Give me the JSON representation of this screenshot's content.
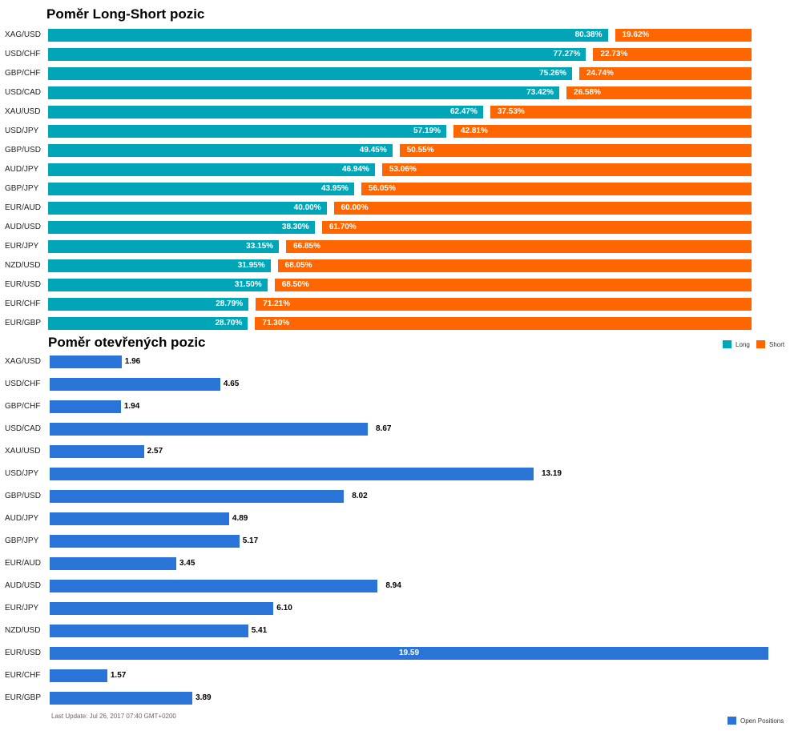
{
  "long_short": {
    "title": "Poměr Long-Short pozic"
  },
  "open_positions": {
    "title": "Poměr otevřených pozic",
    "last_update": "Last Update: Jul 26, 2017 07:40 GMT+0200"
  },
  "legend": {
    "long_label": "Long",
    "short_label": "Short",
    "open_label": "Open Positions"
  },
  "colors": {
    "long": "#00a6b8",
    "short": "#ff6600",
    "open": "#2a74d8"
  },
  "chart_data": [
    {
      "type": "bar",
      "orientation": "horizontal",
      "stacked": true,
      "title": "Poměr Long-Short pozic",
      "categories": [
        "XAG/USD",
        "USD/CHF",
        "GBP/CHF",
        "USD/CAD",
        "XAU/USD",
        "USD/JPY",
        "GBP/USD",
        "AUD/JPY",
        "GBP/JPY",
        "EUR/AUD",
        "AUD/USD",
        "EUR/JPY",
        "NZD/USD",
        "EUR/USD",
        "EUR/CHF",
        "EUR/GBP"
      ],
      "series": [
        {
          "name": "Long",
          "values": [
            80.38,
            77.27,
            75.26,
            73.42,
            62.47,
            57.19,
            49.45,
            46.94,
            43.95,
            40.0,
            38.3,
            33.15,
            31.95,
            31.5,
            28.79,
            28.7
          ],
          "labels": [
            "80.38%",
            "77.27%",
            "75.26%",
            "73.42%",
            "62.47%",
            "57.19%",
            "49.45%",
            "46.94%",
            "43.95%",
            "40.00%",
            "38.30%",
            "33.15%",
            "31.95%",
            "31.50%",
            "28.79%",
            "28.70%"
          ]
        },
        {
          "name": "Short",
          "values": [
            19.62,
            22.73,
            24.74,
            26.58,
            37.53,
            42.81,
            50.55,
            53.06,
            56.05,
            60.0,
            61.7,
            66.85,
            68.05,
            68.5,
            71.21,
            71.3
          ],
          "labels": [
            "19.62%",
            "22.73%",
            "24.74%",
            "26.58%",
            "37.53%",
            "42.81%",
            "50.55%",
            "53.06%",
            "56.05%",
            "60.00%",
            "61.70%",
            "66.85%",
            "68.05%",
            "68.50%",
            "71.21%",
            "71.30%"
          ]
        }
      ],
      "legend_position": "bottom-right"
    },
    {
      "type": "bar",
      "orientation": "horizontal",
      "title": "Poměr otevřených pozic",
      "categories": [
        "XAG/USD",
        "USD/CHF",
        "GBP/CHF",
        "USD/CAD",
        "XAU/USD",
        "USD/JPY",
        "GBP/USD",
        "AUD/JPY",
        "GBP/JPY",
        "EUR/AUD",
        "AUD/USD",
        "EUR/JPY",
        "NZD/USD",
        "EUR/USD",
        "EUR/CHF",
        "EUR/GBP"
      ],
      "series": [
        {
          "name": "Open Positions",
          "values": [
            1.96,
            4.65,
            1.94,
            8.67,
            2.57,
            13.19,
            8.02,
            4.89,
            5.17,
            3.45,
            8.94,
            6.1,
            5.41,
            19.59,
            1.57,
            3.89
          ],
          "labels": [
            "1.96",
            "4.65",
            "1.94",
            "8.67",
            "2.57",
            "13.19",
            "8.02",
            "4.89",
            "5.17",
            "3.45",
            "8.94",
            "6.10",
            "5.41",
            "19.59",
            "1.57",
            "3.89"
          ]
        }
      ],
      "xlim": [
        0,
        19.59
      ],
      "legend_position": "bottom-right"
    }
  ]
}
